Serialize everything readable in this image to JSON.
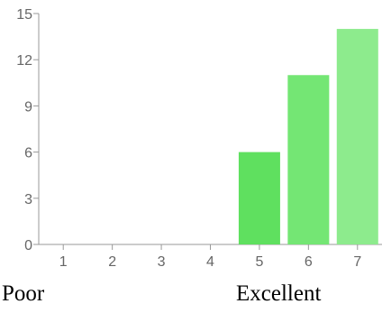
{
  "chart_data": {
    "type": "bar",
    "categories": [
      "1",
      "2",
      "3",
      "4",
      "5",
      "6",
      "7"
    ],
    "values": [
      0,
      0,
      0,
      0,
      6,
      11,
      14
    ],
    "ylim": [
      0,
      15
    ],
    "y_ticks": [
      "0",
      "3",
      "6",
      "9",
      "12",
      "15"
    ],
    "grid": false,
    "legend": "none",
    "bar_colors": [
      "#5fe05f",
      "#5fe05f",
      "#5fe05f",
      "#5fe05f",
      "#5fe05f",
      "#74e674",
      "#8deb8d"
    ],
    "axis_color": "#999999"
  },
  "captions": {
    "left": "Poor",
    "right": "Excellent"
  }
}
